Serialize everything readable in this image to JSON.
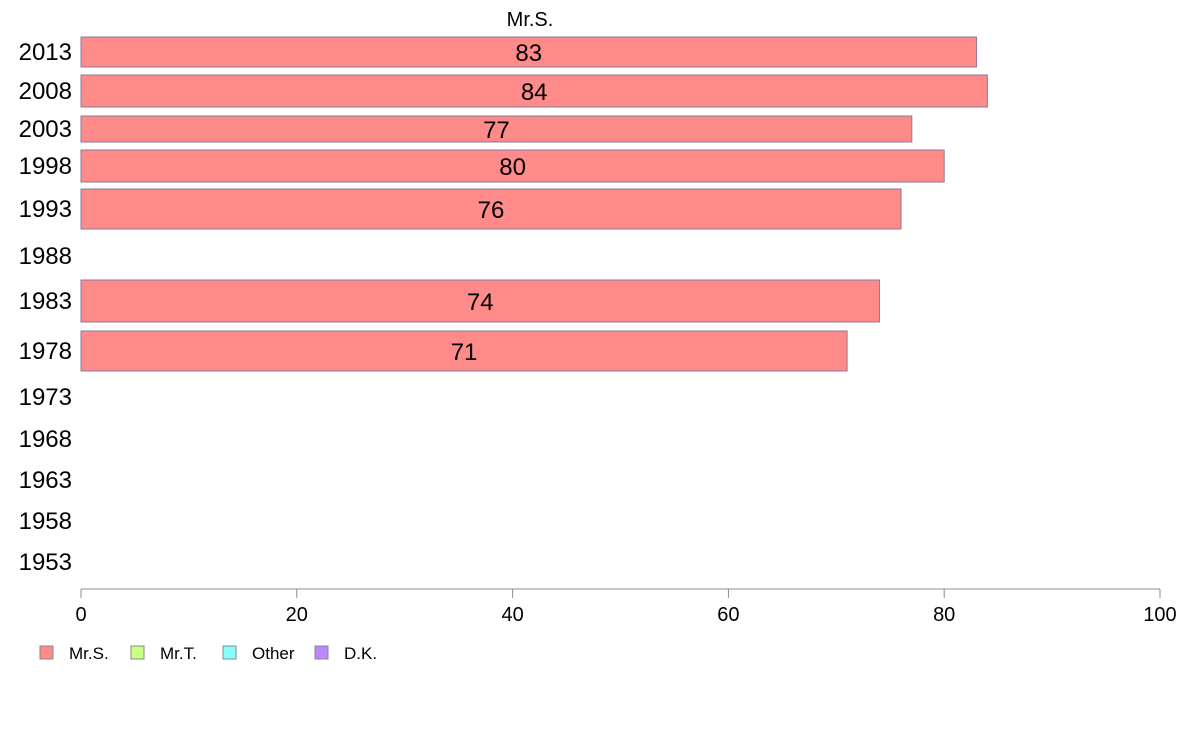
{
  "chart_data": {
    "type": "bar",
    "orientation": "horizontal",
    "series_title": "Mr.S.",
    "categories": [
      "2013",
      "2008",
      "2003",
      "1998",
      "1993",
      "1988",
      "1983",
      "1978",
      "1973",
      "1968",
      "1963",
      "1958",
      "1953"
    ],
    "series": [
      {
        "name": "Mr.S.",
        "values": [
          83,
          84,
          77,
          80,
          76,
          null,
          74,
          71,
          null,
          null,
          null,
          null,
          null
        ]
      }
    ],
    "data_labels": [
      "83",
      "84",
      "77",
      "80",
      "76",
      "",
      "74",
      "71",
      "",
      "",
      "",
      "",
      ""
    ],
    "xlim": [
      0,
      100
    ],
    "xticks": [
      "0",
      "20",
      "40",
      "60",
      "80",
      "100"
    ],
    "grid": false,
    "legend": {
      "placement": "bottom-left",
      "items": [
        {
          "label": "Mr.S.",
          "color": "#ff8a8a"
        },
        {
          "label": "Mr.T.",
          "color": "#ccff88"
        },
        {
          "label": "Other",
          "color": "#88ffff"
        },
        {
          "label": "D.K.",
          "color": "#bb88ff"
        }
      ]
    },
    "colors": {
      "bar_fill": "#ff8a8a",
      "bar_stroke": "#8a7a9a",
      "axis": "#8c8c8c"
    }
  }
}
